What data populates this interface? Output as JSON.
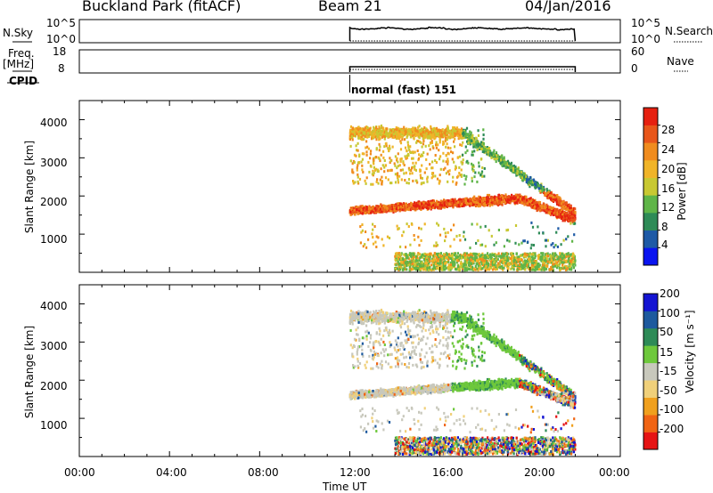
{
  "header": {
    "site": "Buckland Park (fitACF)",
    "beam": "Beam 21",
    "date": "04/Jan/2016"
  },
  "strips": {
    "nsky_label": "N.Sky",
    "nsky_tick_top": "10^5",
    "nsky_tick_bottom": "10^0",
    "nsearch_label": "N.Search",
    "freq_label_1": "Freq.",
    "freq_label_2": "[MHz]",
    "freq_tick_top": "18",
    "freq_tick_bottom": "8",
    "nave_label": "Nave",
    "nave_tick_top": "60",
    "nave_tick_bottom": "0",
    "cpid_label": "CPID",
    "cpid_value": "normal (fast) 151"
  },
  "colors": {
    "power_scale": [
      "#0a14f0",
      "#1e5aa6",
      "#2e8b57",
      "#5fb548",
      "#c8c832",
      "#f0b428",
      "#f08c1e",
      "#e8561a",
      "#e62010"
    ],
    "velocity_scale": [
      "#e61414",
      "#f06414",
      "#f0a01e",
      "#f0d07a",
      "#c8c8bc",
      "#6ec83c",
      "#2e8b57",
      "#1e5a9e",
      "#1414d2"
    ]
  },
  "chart_data": [
    {
      "type": "heatmap",
      "name": "Power",
      "ylabel": "Slant Range [km]",
      "yticks": [
        1000,
        2000,
        3000,
        4000
      ],
      "xticks": [
        "00:00",
        "04:00",
        "08:00",
        "12:00",
        "16:00",
        "20:00",
        "00:00"
      ],
      "colorbar_label": "Power [dB]",
      "colorbar_ticks": [
        "4",
        "8",
        "12",
        "16",
        "20",
        "24",
        "28"
      ],
      "data_start_hour": 12.0,
      "data_end_hour": 22.0
    },
    {
      "type": "heatmap",
      "name": "Velocity",
      "ylabel": "Slant Range [km]",
      "yticks": [
        1000,
        2000,
        3000,
        4000
      ],
      "xticks": [
        "00:00",
        "04:00",
        "08:00",
        "12:00",
        "16:00",
        "20:00",
        "00:00"
      ],
      "xlabel": "Time UT",
      "colorbar_label": "Velocity [m s⁻¹]",
      "colorbar_ticks": [
        "-200",
        "-100",
        "-50",
        "-15",
        "15",
        "50",
        "100",
        "200"
      ],
      "data_start_hour": 12.0,
      "data_end_hour": 22.0
    }
  ]
}
